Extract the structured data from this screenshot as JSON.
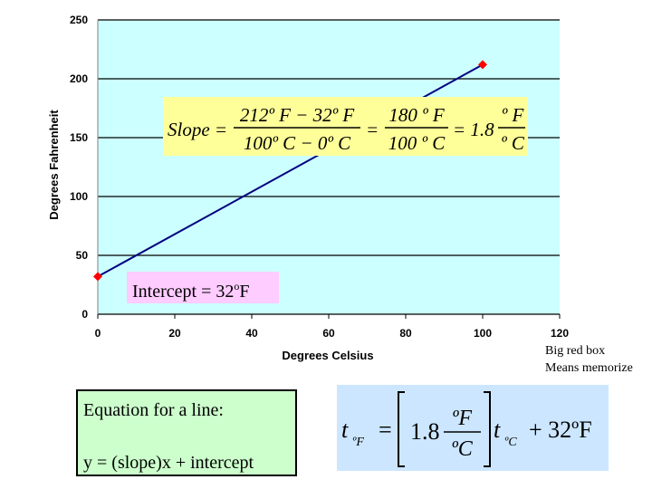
{
  "chart_data": {
    "type": "line",
    "x": [
      0,
      100
    ],
    "series": [
      {
        "name": "Fahrenheit",
        "color": "#000080",
        "marker_color": "#ff0000",
        "values": [
          32,
          212
        ]
      }
    ],
    "xlim": [
      0,
      120
    ],
    "xticks": [
      0,
      20,
      40,
      60,
      80,
      100,
      120
    ],
    "ylim": [
      0,
      250
    ],
    "yticks": [
      0,
      50,
      100,
      150,
      200,
      250
    ],
    "grid": true,
    "xlabel": "Degrees Celsius",
    "ylabel": "Degrees Fahrenheit",
    "annotations": {
      "slope": {
        "lhs": "Slope =",
        "num1": "212º F − 32º F",
        "den1": "100º C − 0º C",
        "eq1": "=",
        "num2": "180 º F",
        "den2": "100 º C",
        "eq2": "= 1.8",
        "num3": "º F",
        "den3": "º C"
      },
      "intercept": {
        "text": "Intercept = 32",
        "sup": "o",
        "unit": "F"
      }
    }
  },
  "notes": [
    "Big red box",
    "Means memorize"
  ],
  "line_box": {
    "title": "Equation for a line:",
    "equation": "y = (slope)x + intercept"
  },
  "formula": {
    "t1": "t",
    "sub1": "ºF",
    "eq": "=",
    "coef": "1.8",
    "num": "ºF",
    "den": "ºC",
    "t2": "t",
    "sub2": "ºC",
    "rest": "+ 32ºF"
  }
}
